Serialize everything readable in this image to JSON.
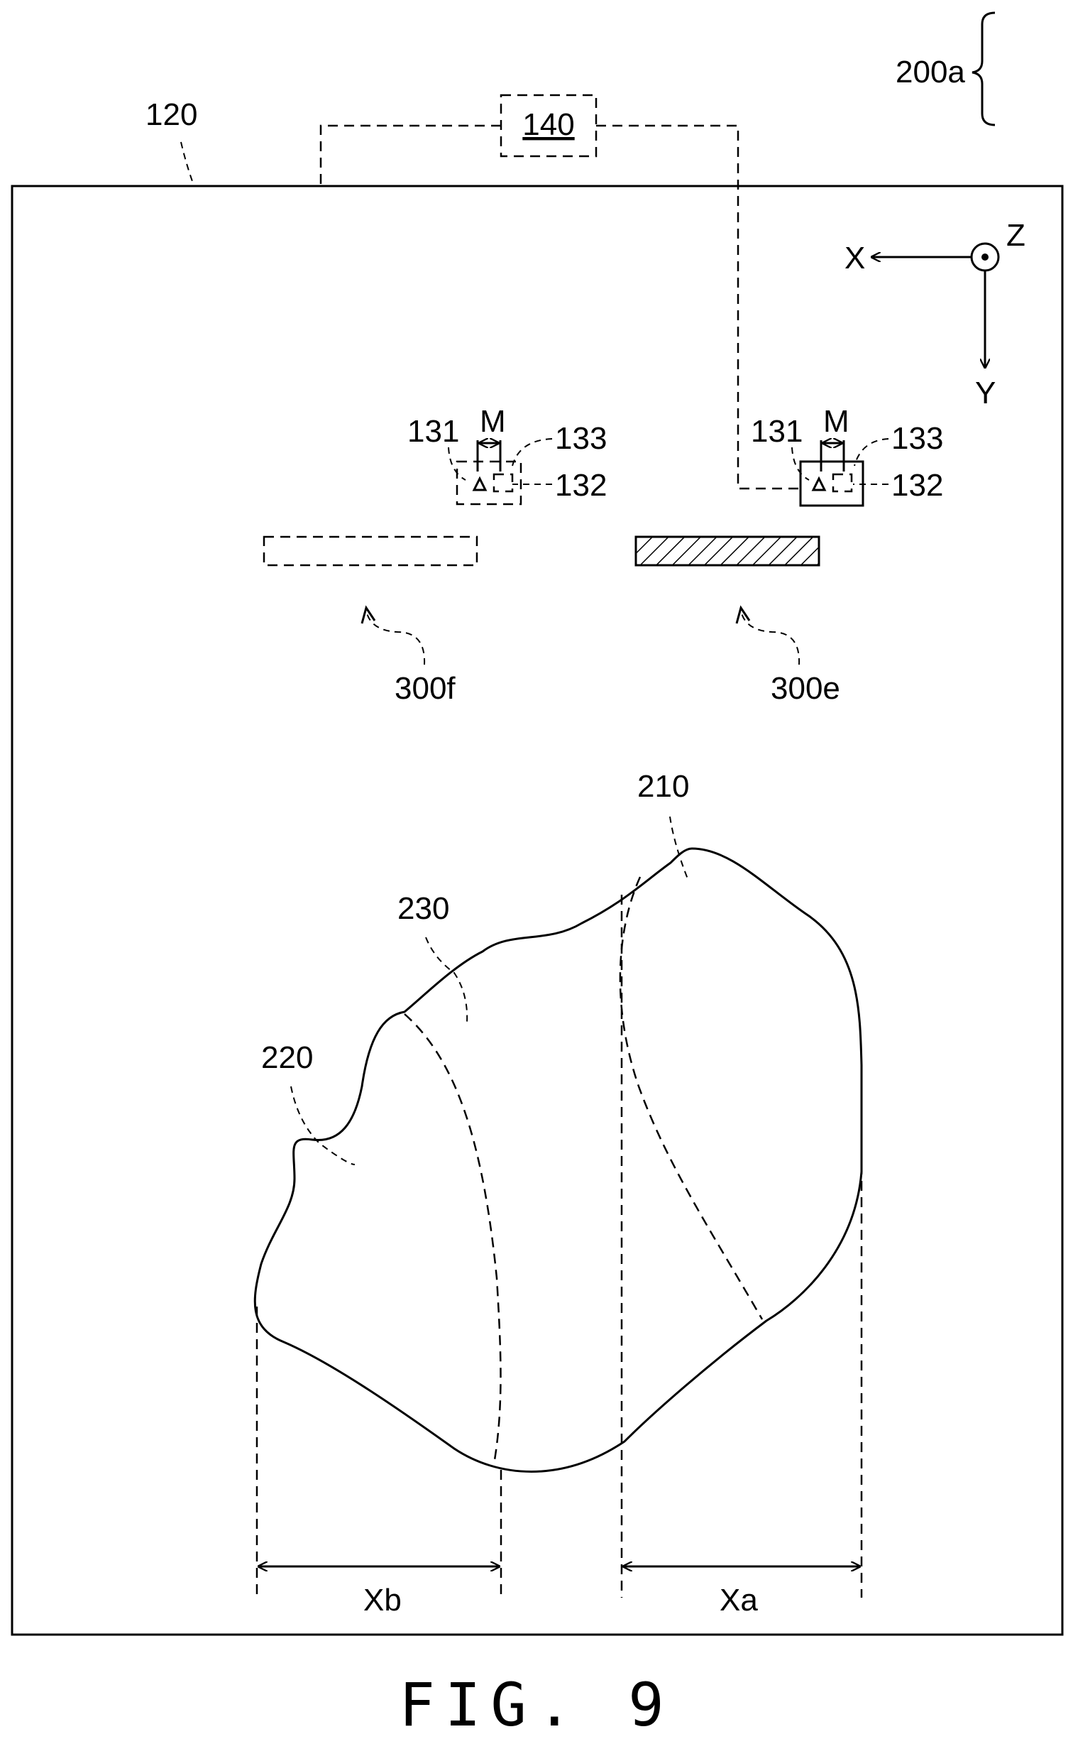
{
  "figure": {
    "caption": "FIG. 9",
    "labels": {
      "panel": "120",
      "controller": "140",
      "group": "200a",
      "group_members": [
        "210",
        "220",
        "230"
      ],
      "region_210": "210",
      "region_220": "220",
      "region_230": "230",
      "source_f": "300f",
      "source_e": "300e",
      "sensor_left": {
        "c131": "131",
        "c132": "132",
        "c133": "133",
        "gap": "M"
      },
      "sensor_right": {
        "c131": "131",
        "c132": "132",
        "c133": "133",
        "gap": "M"
      },
      "width_b": "Xb",
      "width_a": "Xa"
    },
    "axes": {
      "x": "X",
      "y": "Y",
      "z": "Z"
    }
  }
}
